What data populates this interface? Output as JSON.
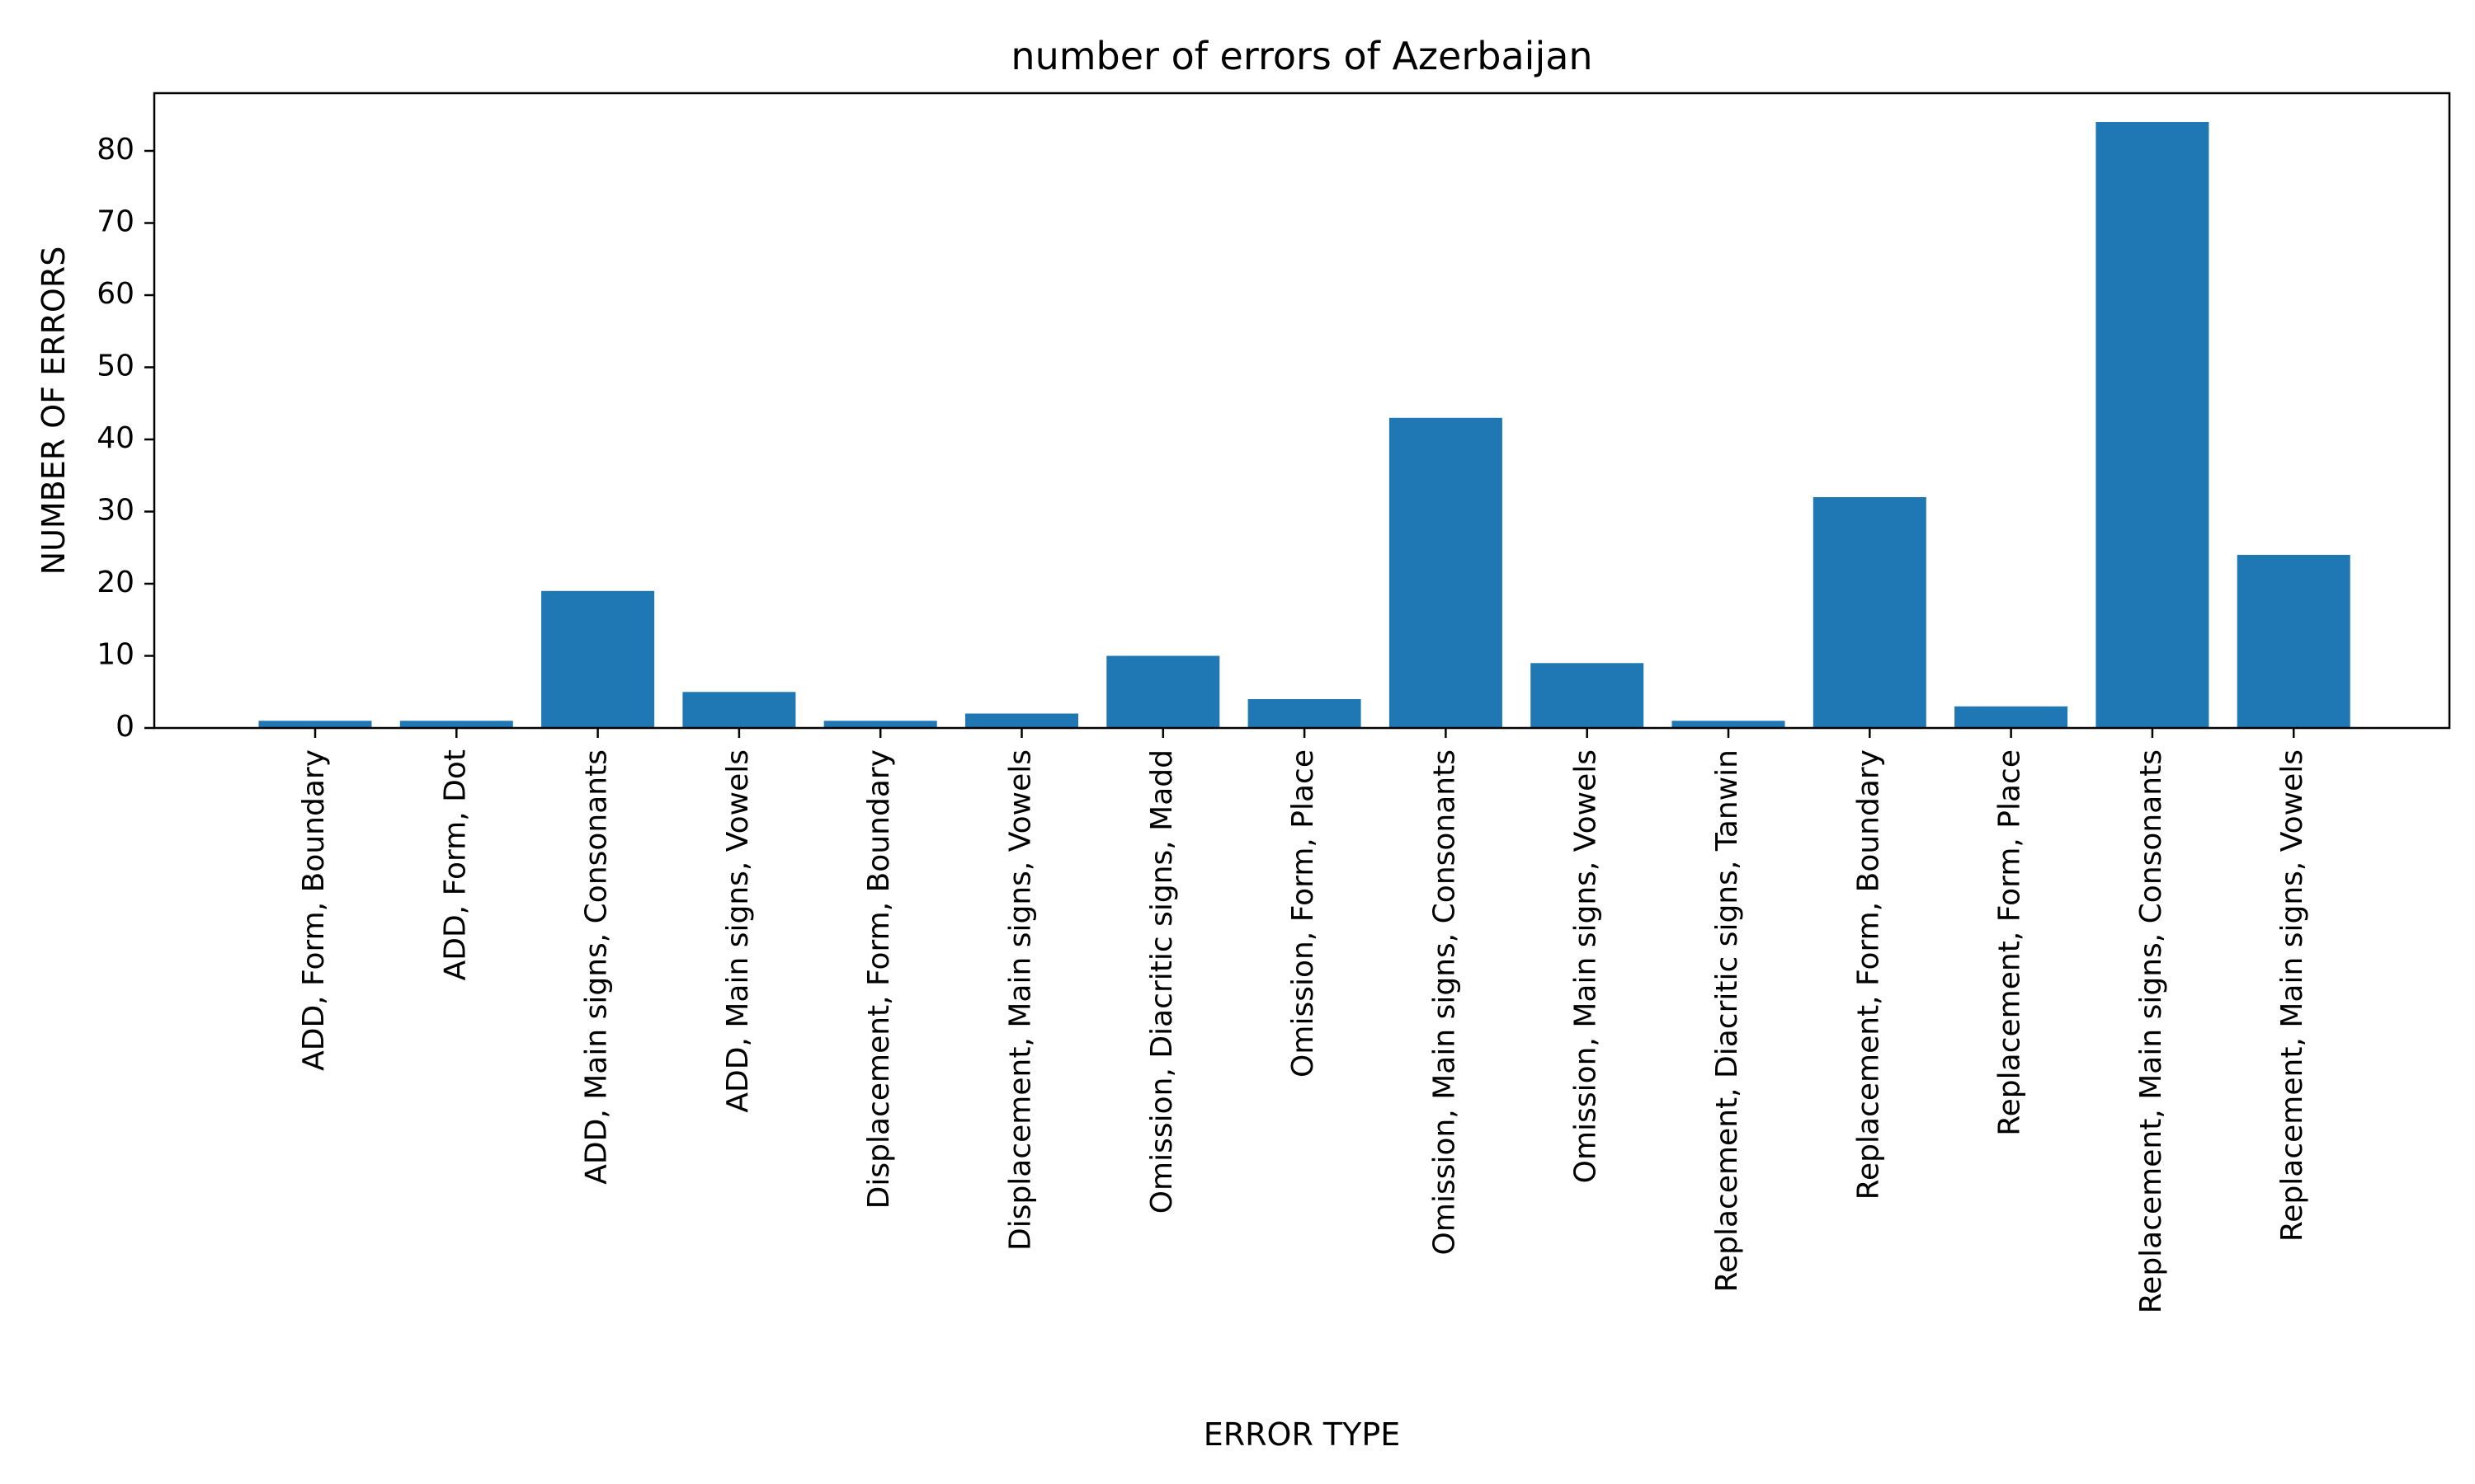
{
  "chart_data": {
    "type": "bar",
    "title": "number of errors of Azerbaijan",
    "xlabel": "ERROR TYPE",
    "ylabel": "NUMBER OF ERRORS",
    "categories": [
      "ADD, Form, Boundary",
      "ADD, Form, Dot",
      "ADD, Main signs, Consonants",
      "ADD, Main signs, Vowels",
      "Displacement, Form, Boundary",
      "Displacement, Main signs, Vowels",
      "Omission, Diacritic signs, Madd",
      "Omission, Form, Place",
      "Omission, Main signs, Consonants",
      "Omission, Main signs, Vowels",
      "Replacement, Diacritic signs, Tanwin",
      "Replacement, Form, Boundary",
      "Replacement, Form, Place",
      "Replacement, Main signs, Consonants",
      "Replacement, Main signs, Vowels"
    ],
    "values": [
      1,
      1,
      19,
      5,
      1,
      2,
      10,
      4,
      43,
      9,
      1,
      32,
      3,
      84,
      24
    ],
    "ylim": [
      0,
      88
    ],
    "yticks": [
      0,
      10,
      20,
      30,
      40,
      50,
      60,
      70,
      80
    ],
    "grid": false,
    "bar_color": "#1f77b4"
  }
}
